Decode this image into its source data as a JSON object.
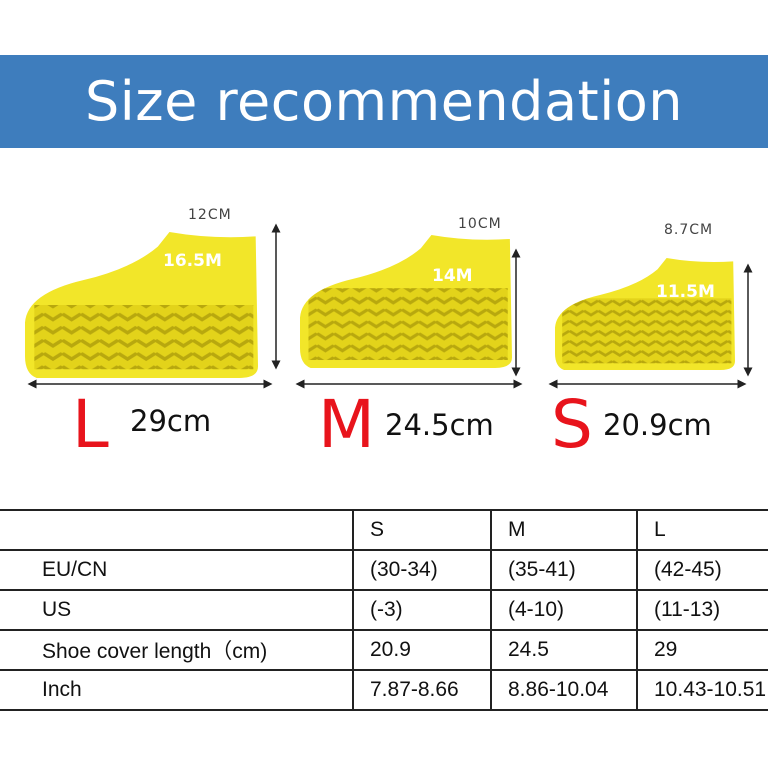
{
  "header": {
    "title": "Size recommendation",
    "background_color": "#3e7dbd"
  },
  "products": [
    {
      "size": "L",
      "length": "29cm",
      "top_width": "12CM",
      "height": "16.5M"
    },
    {
      "size": "M",
      "length": "24.5cm",
      "top_width": "10CM",
      "height": "14M"
    },
    {
      "size": "S",
      "length": "20.9cm",
      "top_width": "8.7CM",
      "height": "11.5M"
    }
  ],
  "colors": {
    "shoe": "#f2e629",
    "size_letter": "#e8141c"
  },
  "table": {
    "headers": [
      "",
      "S",
      "M",
      "L"
    ],
    "rows": [
      [
        "EU/CN",
        "(30-34)",
        "(35-41)",
        "(42-45)"
      ],
      [
        "US",
        "(-3)",
        "(4-10)",
        "(11-13)"
      ],
      [
        "Shoe cover length（cm)",
        "20.9",
        "24.5",
        "29"
      ],
      [
        "Inch",
        "7.87-8.66",
        "8.86-10.04",
        "10.43-10.51"
      ]
    ]
  }
}
